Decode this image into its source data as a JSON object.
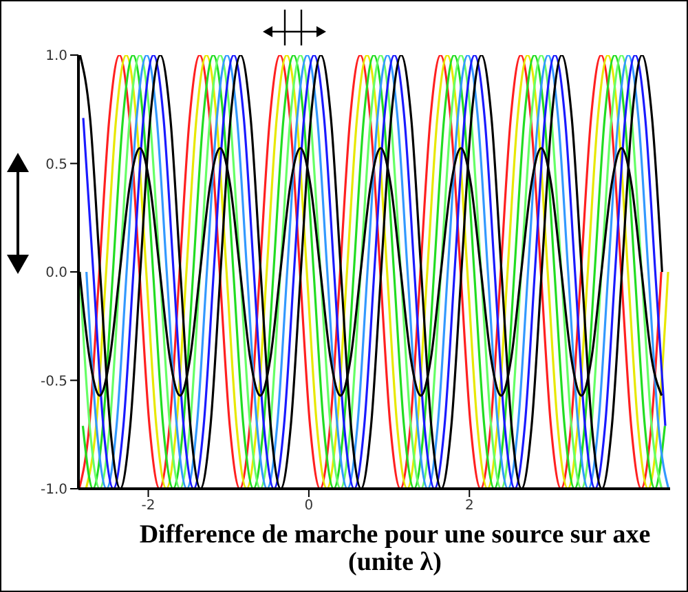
{
  "chart_data": {
    "type": "line",
    "xlabel": "Difference de marche pour une source sur axe (unite λ)",
    "xlim": [
      -2.87,
      4.5
    ],
    "ylim": [
      -1,
      1
    ],
    "xticks": [
      -2,
      0,
      2
    ],
    "yticks": [
      {
        "value": -1,
        "label": "-1.0"
      },
      {
        "value": -0.5,
        "label": "-0.5"
      },
      {
        "value": 0,
        "label": "0.0"
      },
      {
        "value": 0.5,
        "label": "0.5"
      },
      {
        "value": 1,
        "label": "1.0"
      }
    ],
    "series": [
      {
        "color": "#ff2020",
        "x": [
          -2.86,
          -2.735,
          -2.61,
          -2.485,
          -2.36,
          -2.235,
          -2.11,
          -1.985,
          -1.86,
          -1.735,
          -1.61,
          -1.485,
          -1.36,
          -1.235,
          -1.11,
          -0.985,
          -0.86,
          -0.735,
          -0.61,
          -0.485,
          -0.36,
          -0.235,
          -0.11,
          0.015,
          0.14,
          0.265,
          0.39,
          0.515,
          0.64,
          0.765,
          0.89,
          1.015,
          1.14,
          1.265,
          1.39,
          1.515,
          1.64,
          1.765,
          1.89,
          2.015,
          2.14,
          2.265,
          2.39,
          2.515,
          2.64,
          2.765,
          2.89,
          3.015,
          3.14,
          3.265,
          3.39,
          3.515,
          3.64,
          3.765,
          3.89,
          4.015,
          4.14,
          4.265,
          4.39
        ],
        "values": [
          -1,
          -0.71,
          0,
          0.71,
          1,
          0.71,
          0,
          -0.71,
          -1,
          -0.71,
          0,
          0.71,
          1,
          0.71,
          0,
          -0.71,
          -1,
          -0.71,
          0,
          0.71,
          1,
          0.71,
          0,
          -0.71,
          -1,
          -0.71,
          0,
          0.71,
          1,
          0.71,
          0,
          -0.71,
          -1,
          -0.71,
          0,
          0.71,
          1,
          0.71,
          0,
          -0.71,
          -1,
          -0.71,
          0,
          0.71,
          1,
          0.71,
          0,
          -0.71,
          -1,
          -0.71,
          0,
          0.71,
          1,
          0.71,
          0,
          -0.71,
          -1,
          -0.71,
          0
        ]
      },
      {
        "color": "#e8e800",
        "x": [
          -2.775,
          -2.65,
          -2.525,
          -2.4,
          -2.275,
          -2.15,
          -2.025,
          -1.9,
          -1.775,
          -1.65,
          -1.525,
          -1.4,
          -1.275,
          -1.15,
          -1.025,
          -0.9,
          -0.775,
          -0.65,
          -0.525,
          -0.4,
          -0.275,
          -0.15,
          -0.025,
          0.1,
          0.225,
          0.35,
          0.475,
          0.6,
          0.725,
          0.85,
          0.975,
          1.1,
          1.225,
          1.35,
          1.475,
          1.6,
          1.725,
          1.85,
          1.975,
          2.1,
          2.225,
          2.35,
          2.475,
          2.6,
          2.725,
          2.85,
          2.975,
          3.1,
          3.225,
          3.35,
          3.475,
          3.6,
          3.725,
          3.85,
          3.975,
          4.1,
          4.225,
          4.35,
          4.475
        ],
        "values": [
          -1,
          -0.71,
          0,
          0.71,
          1,
          0.71,
          0,
          -0.71,
          -1,
          -0.71,
          0,
          0.71,
          1,
          0.71,
          0,
          -0.71,
          -1,
          -0.71,
          0,
          0.71,
          1,
          0.71,
          0,
          -0.71,
          -1,
          -0.71,
          0,
          0.71,
          1,
          0.71,
          0,
          -0.71,
          -1,
          -0.71,
          0,
          0.71,
          1,
          0.71,
          0,
          -0.71,
          -1,
          -0.71,
          0,
          0.71,
          1,
          0.71,
          0,
          -0.71,
          -1,
          -0.71,
          0,
          0.71,
          1,
          0.71,
          0,
          -0.71,
          -1,
          -0.71,
          0
        ]
      },
      {
        "color": "#22dd22",
        "x": [
          -2.815,
          -2.69,
          -2.565,
          -2.44,
          -2.315,
          -2.19,
          -2.065,
          -1.94,
          -1.815,
          -1.69,
          -1.565,
          -1.44,
          -1.315,
          -1.19,
          -1.065,
          -0.94,
          -0.815,
          -0.69,
          -0.565,
          -0.44,
          -0.315,
          -0.19,
          -0.065,
          0.06,
          0.185,
          0.31,
          0.435,
          0.56,
          0.685,
          0.81,
          0.935,
          1.06,
          1.185,
          1.31,
          1.435,
          1.56,
          1.685,
          1.81,
          1.935,
          2.06,
          2.185,
          2.31,
          2.435,
          2.56,
          2.685,
          2.81,
          2.935,
          3.06,
          3.185,
          3.31,
          3.435,
          3.56,
          3.685,
          3.81,
          3.935,
          4.06,
          4.185,
          4.31,
          4.435
        ],
        "values": [
          -0.71,
          -1,
          -0.71,
          0,
          0.71,
          1,
          0.71,
          0,
          -0.71,
          -1,
          -0.71,
          0,
          0.71,
          1,
          0.71,
          0,
          -0.71,
          -1,
          -0.71,
          0,
          0.71,
          1,
          0.71,
          0,
          -0.71,
          -1,
          -0.71,
          0,
          0.71,
          1,
          0.71,
          0,
          -0.71,
          -1,
          -0.71,
          0,
          0.71,
          1,
          0.71,
          0,
          -0.71,
          -1,
          -0.71,
          0,
          0.71,
          1,
          0.71,
          0,
          -0.71,
          -1,
          -0.71,
          0,
          0.71,
          1,
          0.71,
          0,
          -0.71,
          -1,
          -0.71
        ]
      },
      {
        "color": "#66ff66",
        "x": [
          -2.855,
          -2.73,
          -2.605,
          -2.48,
          -2.355,
          -2.23,
          -2.105,
          -1.98,
          -1.855,
          -1.73,
          -1.605,
          -1.48,
          -1.355,
          -1.23,
          -1.105,
          -0.98,
          -0.855,
          -0.73,
          -0.605,
          -0.48,
          -0.355,
          -0.23,
          -0.105,
          0.02,
          0.145,
          0.27,
          0.395,
          0.52,
          0.645,
          0.77,
          0.895,
          1.02,
          1.145,
          1.27,
          1.395,
          1.52,
          1.645,
          1.77,
          1.895,
          2.02,
          2.145,
          2.27,
          2.395,
          2.52,
          2.645,
          2.77,
          2.895,
          3.02,
          3.145,
          3.27,
          3.395,
          3.52,
          3.645,
          3.77,
          3.895,
          4.02,
          4.145,
          4.27,
          4.395
        ],
        "values": [
          0,
          -0.71,
          -1,
          -0.71,
          0,
          0.71,
          1,
          0.71,
          0,
          -0.71,
          -1,
          -0.71,
          0,
          0.71,
          1,
          0.71,
          0,
          -0.71,
          -1,
          -0.71,
          0,
          0.71,
          1,
          0.71,
          0,
          -0.71,
          -1,
          -0.71,
          0,
          0.71,
          1,
          0.71,
          0,
          -0.71,
          -1,
          -0.71,
          0,
          0.71,
          1,
          0.71,
          0,
          -0.71,
          -1,
          -0.71,
          0,
          0.71,
          1,
          0.71,
          0,
          -0.71,
          -1,
          -0.71,
          0,
          0.71,
          1,
          0.71,
          0,
          -0.71,
          -1
        ]
      },
      {
        "color": "#3399ff",
        "x": [
          -2.77,
          -2.645,
          -2.52,
          -2.395,
          -2.27,
          -2.145,
          -2.02,
          -1.895,
          -1.77,
          -1.645,
          -1.52,
          -1.395,
          -1.27,
          -1.145,
          -1.02,
          -0.895,
          -0.77,
          -0.645,
          -0.52,
          -0.395,
          -0.27,
          -0.145,
          -0.02,
          0.105,
          0.23,
          0.355,
          0.48,
          0.605,
          0.73,
          0.855,
          0.98,
          1.105,
          1.23,
          1.355,
          1.48,
          1.605,
          1.73,
          1.855,
          1.98,
          2.105,
          2.23,
          2.355,
          2.48,
          2.605,
          2.73,
          2.855,
          2.98,
          3.105,
          3.23,
          3.355,
          3.48,
          3.605,
          3.73,
          3.855,
          3.98,
          4.105,
          4.23,
          4.355,
          4.48
        ],
        "values": [
          0,
          -0.71,
          -1,
          -0.71,
          0,
          0.71,
          1,
          0.71,
          0,
          -0.71,
          -1,
          -0.71,
          0,
          0.71,
          1,
          0.71,
          0,
          -0.71,
          -1,
          -0.71,
          0,
          0.71,
          1,
          0.71,
          0,
          -0.71,
          -1,
          -0.71,
          0,
          0.71,
          1,
          0.71,
          0,
          -0.71,
          -1,
          -0.71,
          0,
          0.71,
          1,
          0.71,
          0,
          -0.71,
          -1,
          -0.71,
          0,
          0.71,
          1,
          0.71,
          0,
          -0.71,
          -1,
          -0.71,
          0,
          0.71,
          1,
          0.71,
          0,
          -0.71,
          -1
        ]
      },
      {
        "color": "#1a1aff",
        "x": [
          -2.81,
          -2.685,
          -2.56,
          -2.435,
          -2.31,
          -2.185,
          -2.06,
          -1.935,
          -1.81,
          -1.685,
          -1.56,
          -1.435,
          -1.31,
          -1.185,
          -1.06,
          -0.935,
          -0.81,
          -0.685,
          -0.56,
          -0.435,
          -0.31,
          -0.185,
          -0.06,
          0.065,
          0.19,
          0.315,
          0.44,
          0.565,
          0.69,
          0.815,
          0.94,
          1.065,
          1.19,
          1.315,
          1.44,
          1.565,
          1.69,
          1.815,
          1.94,
          2.065,
          2.19,
          2.315,
          2.44,
          2.565,
          2.69,
          2.815,
          2.94,
          3.065,
          3.19,
          3.315,
          3.44,
          3.565,
          3.69,
          3.815,
          3.94,
          4.065,
          4.19,
          4.315,
          4.44
        ],
        "values": [
          0.71,
          0,
          -0.71,
          -1,
          -0.71,
          0,
          0.71,
          1,
          0.71,
          0,
          -0.71,
          -1,
          -0.71,
          0,
          0.71,
          1,
          0.71,
          0,
          -0.71,
          -1,
          -0.71,
          0,
          0.71,
          1,
          0.71,
          0,
          -0.71,
          -1,
          -0.71,
          0,
          0.71,
          1,
          0.71,
          0,
          -0.71,
          -1,
          -0.71,
          0,
          0.71,
          1,
          0.71,
          0,
          -0.71,
          -1,
          -0.71,
          0,
          0.71,
          1,
          0.71,
          0,
          -0.71,
          -1,
          -0.71,
          0,
          0.71,
          1,
          0.71,
          0,
          -0.71
        ]
      },
      {
        "color": "#000000",
        "x": [
          -2.85,
          -2.725,
          -2.6,
          -2.475,
          -2.35,
          -2.225,
          -2.1,
          -1.975,
          -1.85,
          -1.725,
          -1.6,
          -1.475,
          -1.35,
          -1.225,
          -1.1,
          -0.975,
          -0.85,
          -0.725,
          -0.6,
          -0.475,
          -0.35,
          -0.225,
          -0.1,
          0.025,
          0.15,
          0.275,
          0.4,
          0.525,
          0.65,
          0.775,
          0.9,
          1.025,
          1.15,
          1.275,
          1.4,
          1.525,
          1.65,
          1.775,
          1.9,
          2.025,
          2.15,
          2.275,
          2.4,
          2.525,
          2.65,
          2.775,
          2.9,
          3.025,
          3.15,
          3.275,
          3.4,
          3.525,
          3.65,
          3.775,
          3.9,
          4.025,
          4.15,
          4.275,
          4.4
        ],
        "values": [
          1,
          0.71,
          0,
          -0.71,
          -1,
          -0.71,
          0,
          0.71,
          1,
          0.71,
          0,
          -0.71,
          -1,
          -0.71,
          0,
          0.71,
          1,
          0.71,
          0,
          -0.71,
          -1,
          -0.71,
          0,
          0.71,
          1,
          0.71,
          0,
          -0.71,
          -1,
          -0.71,
          0,
          0.71,
          1,
          0.71,
          0,
          -0.71,
          -1,
          -0.71,
          0,
          0.71,
          1,
          0.71,
          0,
          -0.71,
          -1,
          -0.71,
          0,
          0.71,
          1,
          0.71,
          0,
          -0.71,
          -1,
          -0.71,
          0,
          0.71,
          1,
          0.71,
          0
        ]
      },
      {
        "color": "#000000",
        "x": [
          -2.855,
          -2.73,
          -2.605,
          -2.48,
          -2.355,
          -2.23,
          -2.105,
          -1.98,
          -1.855,
          -1.73,
          -1.605,
          -1.48,
          -1.355,
          -1.23,
          -1.105,
          -0.98,
          -0.855,
          -0.73,
          -0.605,
          -0.48,
          -0.355,
          -0.23,
          -0.105,
          0.02,
          0.145,
          0.27,
          0.395,
          0.52,
          0.645,
          0.77,
          0.895,
          1.02,
          1.145,
          1.27,
          1.395,
          1.52,
          1.645,
          1.77,
          1.895,
          2.02,
          2.145,
          2.27,
          2.395,
          2.52,
          2.645,
          2.77,
          2.895,
          3.02,
          3.145,
          3.27,
          3.395,
          3.52,
          3.645,
          3.77,
          3.895,
          4.02,
          4.145,
          4.27,
          4.395
        ],
        "values": [
          0,
          -0.4,
          -0.57,
          -0.4,
          0,
          0.4,
          0.57,
          0.4,
          0,
          -0.4,
          -0.57,
          -0.4,
          0,
          0.4,
          0.57,
          0.4,
          0,
          -0.4,
          -0.57,
          -0.4,
          0,
          0.4,
          0.57,
          0.4,
          0,
          -0.4,
          -0.57,
          -0.4,
          0,
          0.4,
          0.57,
          0.4,
          0,
          -0.4,
          -0.57,
          -0.4,
          0,
          0.4,
          0.57,
          0.4,
          0,
          -0.4,
          -0.57,
          -0.4,
          0,
          0.4,
          0.57,
          0.4,
          0,
          -0.4,
          -0.57,
          -0.4,
          0,
          0.4,
          0.57,
          0.4,
          0,
          -0.4,
          -0.57
        ]
      }
    ]
  }
}
